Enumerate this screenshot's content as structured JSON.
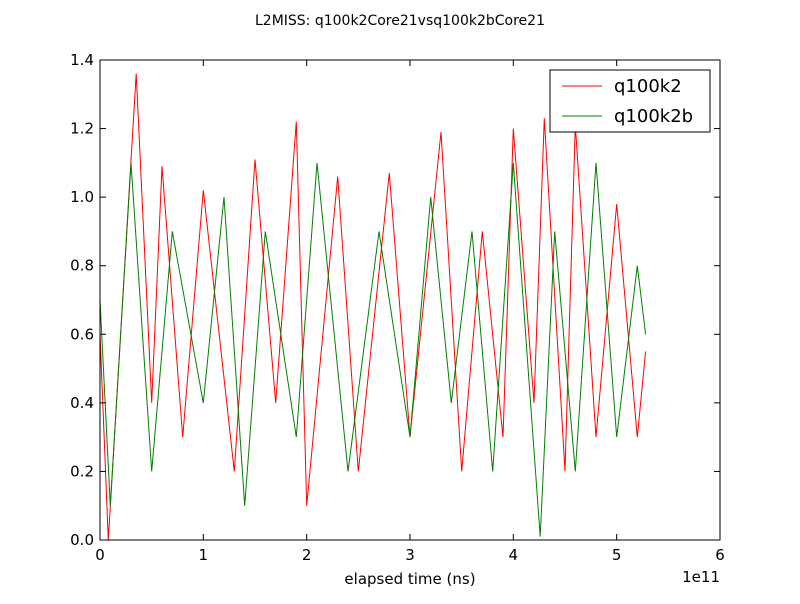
{
  "chart_data": {
    "type": "line",
    "title": "L2MISS: q100k2Core21vsq100k2bCore21",
    "xlabel": "elapsed time (ns)",
    "ylabel": "",
    "x_offset_label": "1e11",
    "xlim": [
      0,
      6
    ],
    "ylim": [
      0.0,
      1.4
    ],
    "x_ticks": [
      0,
      1,
      2,
      3,
      4,
      5,
      6
    ],
    "x_tick_labels": [
      "0",
      "1",
      "2",
      "3",
      "4",
      "5",
      "6"
    ],
    "y_ticks": [
      0.0,
      0.2,
      0.4,
      0.6,
      0.8,
      1.0,
      1.2,
      1.4
    ],
    "y_tick_labels": [
      "0.0",
      "0.2",
      "0.4",
      "0.6",
      "0.8",
      "1.0",
      "1.2",
      "1.4"
    ],
    "grid": false,
    "legend_position": "top-right",
    "series": [
      {
        "name": "q100k2",
        "color": "#ff0000",
        "x": [
          0.0,
          0.08,
          0.35,
          0.5,
          0.6,
          0.8,
          1.0,
          1.3,
          1.5,
          1.7,
          1.9,
          2.0,
          2.3,
          2.5,
          2.8,
          3.0,
          3.3,
          3.5,
          3.7,
          3.9,
          4.0,
          4.2,
          4.3,
          4.5,
          4.6,
          4.8,
          5.0,
          5.2,
          5.28
        ],
        "y": [
          0.6,
          0.0,
          1.36,
          0.4,
          1.09,
          0.3,
          1.02,
          0.2,
          1.11,
          0.4,
          1.22,
          0.1,
          1.06,
          0.2,
          1.07,
          0.3,
          1.19,
          0.2,
          0.9,
          0.3,
          1.2,
          0.4,
          1.23,
          0.2,
          1.21,
          0.3,
          0.98,
          0.3,
          0.55
        ]
      },
      {
        "name": "q100k2b",
        "color": "#008000",
        "x": [
          0.0,
          0.1,
          0.3,
          0.5,
          0.7,
          1.0,
          1.2,
          1.4,
          1.6,
          1.9,
          2.1,
          2.4,
          2.7,
          3.0,
          3.2,
          3.4,
          3.6,
          3.8,
          4.0,
          4.26,
          4.4,
          4.6,
          4.8,
          5.0,
          5.2,
          5.28
        ],
        "y": [
          0.7,
          0.1,
          1.1,
          0.2,
          0.9,
          0.4,
          1.0,
          0.1,
          0.9,
          0.3,
          1.1,
          0.2,
          0.9,
          0.3,
          1.0,
          0.4,
          0.9,
          0.2,
          1.1,
          0.01,
          0.9,
          0.2,
          1.1,
          0.3,
          0.8,
          0.6
        ]
      }
    ]
  }
}
